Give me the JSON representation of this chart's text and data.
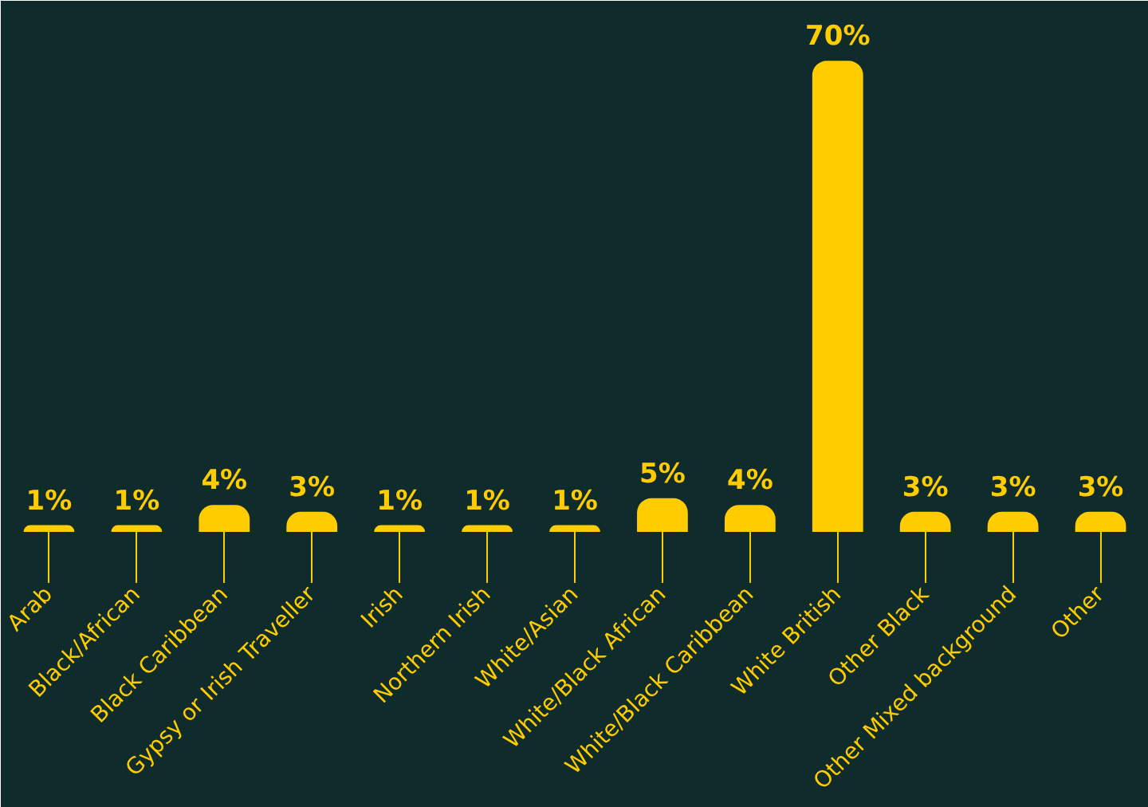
{
  "chart_data": {
    "type": "bar",
    "categories": [
      "Arab",
      "Black/African",
      "Black Caribbean",
      "Gypsy or Irish Traveller",
      "Irish",
      "Northern Irish",
      "White/Asian",
      "White/Black African",
      "White/Black Caribbean",
      "White British",
      "Other Black",
      "Other Mixed background",
      "Other"
    ],
    "values": [
      1,
      1,
      4,
      3,
      1,
      1,
      1,
      5,
      4,
      70,
      3,
      3,
      3
    ],
    "value_labels": [
      "1%",
      "1%",
      "4%",
      "3%",
      "1%",
      "1%",
      "1%",
      "5%",
      "4%",
      "70%",
      "3%",
      "3%",
      "3%"
    ],
    "color": "#ffcc00",
    "grid": false
  }
}
